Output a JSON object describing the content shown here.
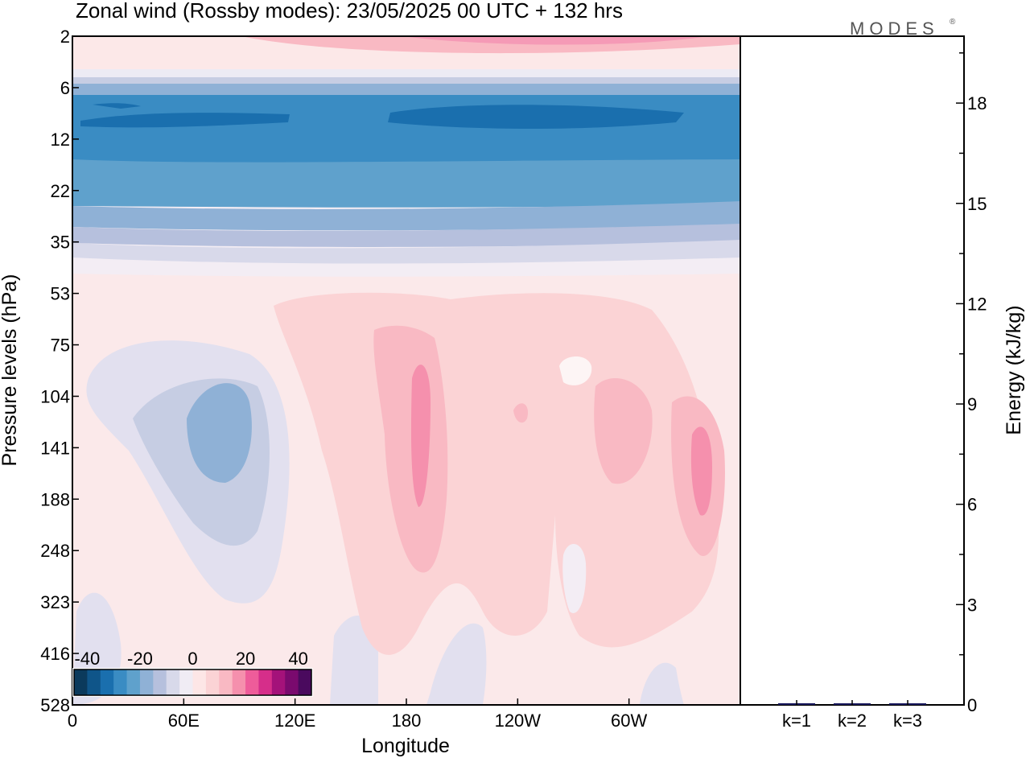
{
  "chart_data": [
    {
      "type": "heatmap",
      "title": "Zonal wind (Rossby modes):  23/05/2025  00 UTC  + 132 hrs",
      "xlabel": "Longitude",
      "ylabel": "Pressure levels (hPa)",
      "x_ticks": [
        "0",
        "60E",
        "120E",
        "180",
        "120W",
        "60W"
      ],
      "y_ticks": [
        "2",
        "6",
        "12",
        "22",
        "35",
        "53",
        "75",
        "104",
        "141",
        "188",
        "248",
        "323",
        "416",
        "528"
      ],
      "y_scale": "log",
      "colorbar": {
        "ticks": [
          "-40",
          "-20",
          "0",
          "20",
          "40"
        ],
        "range": [
          -45,
          45
        ],
        "colors": [
          "#0b3a5c",
          "#0f5589",
          "#1a6fae",
          "#3a8cc3",
          "#5fa1cc",
          "#8fb1d6",
          "#b6c0dd",
          "#d8d9ea",
          "#f0ecf4",
          "#fde6e6",
          "#fbd3d5",
          "#f9b9c3",
          "#f590ad",
          "#ee5c9a",
          "#d62e8a",
          "#a4127a",
          "#7a0a6e",
          "#4a0a5e"
        ]
      },
      "features": [
        {
          "label": "easterly jet",
          "lon_range": [
            0,
            360
          ],
          "pressure_range": [
            7,
            17
          ],
          "u": -33
        },
        {
          "label": "easterly band",
          "lon_range": [
            0,
            360
          ],
          "pressure_range": [
            17,
            30
          ],
          "u": -20
        },
        {
          "label": "westerly top",
          "lon_range": [
            110,
            300
          ],
          "pressure_range": [
            2,
            3
          ],
          "u": 18
        },
        {
          "label": "western easterly cell",
          "lon_center": 80,
          "pressure_center": 150,
          "u": -16
        },
        {
          "label": "westerly maximum",
          "lon_center": 186,
          "pressure_center": 140,
          "u": 17
        },
        {
          "label": "westerly maximum",
          "lon_center": 339,
          "pressure_center": 165,
          "u": 17
        }
      ]
    },
    {
      "type": "bar",
      "categories": [
        "k=1",
        "k=2",
        "k=3"
      ],
      "values": [
        0.05,
        0.02,
        0.02
      ],
      "ylabel": "Energy (kJ/kg)",
      "ylim": [
        0,
        20
      ],
      "y_ticks": [
        "0",
        "3",
        "6",
        "9",
        "12",
        "15",
        "18"
      ],
      "bar_color": "#1a1a5e"
    }
  ],
  "logo": "MODES",
  "logo_mark": "®"
}
